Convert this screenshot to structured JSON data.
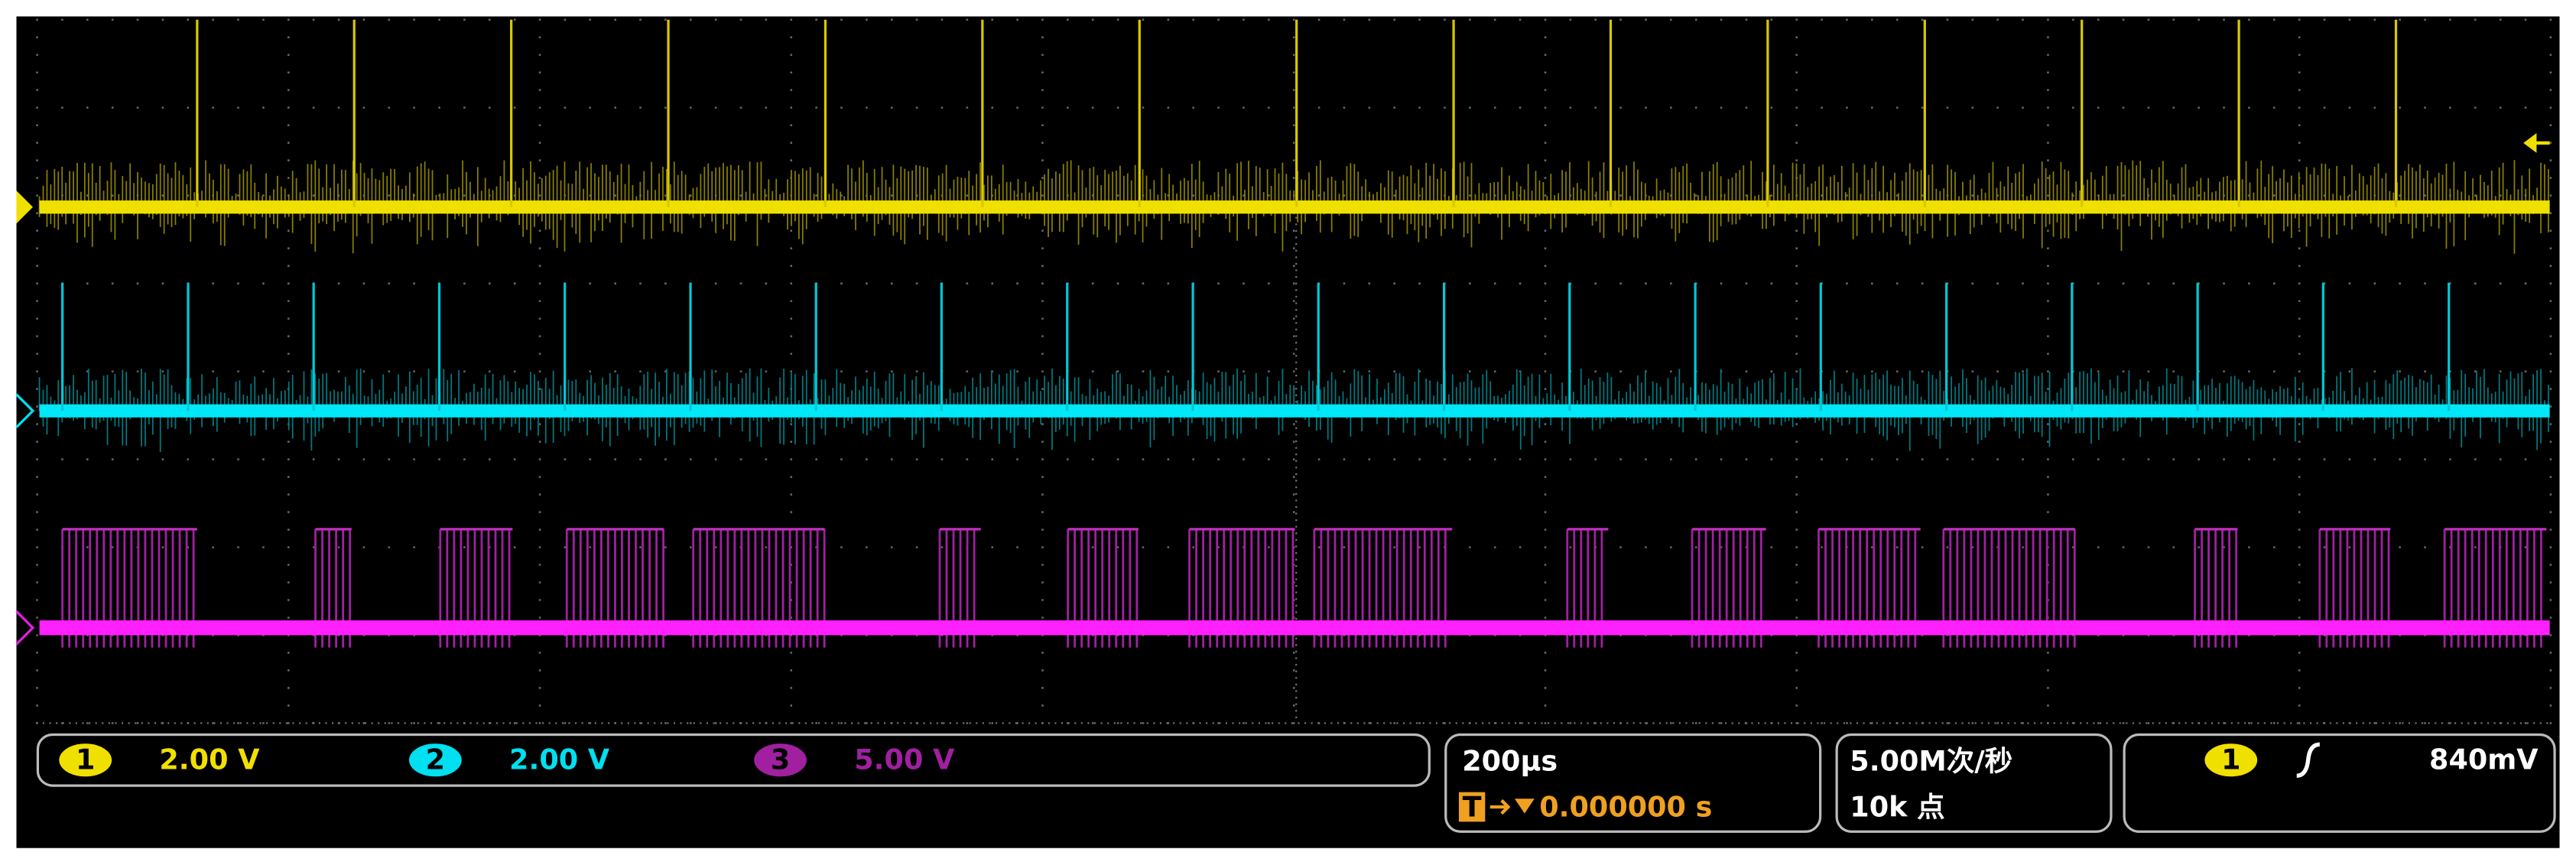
{
  "channels": [
    {
      "number": "1",
      "scale": "2.00 V"
    },
    {
      "number": "2",
      "scale": "2.00 V"
    },
    {
      "number": "3",
      "scale": "5.00 V"
    }
  ],
  "horizontal": {
    "timebase": "200µs",
    "time_reference": "T",
    "trigger_position": "0.000000 s"
  },
  "acquisition": {
    "sample_rate": "5.00M次/秒",
    "record_length": "10k 点"
  },
  "trigger": {
    "channel": "1",
    "level": "840mV"
  }
}
